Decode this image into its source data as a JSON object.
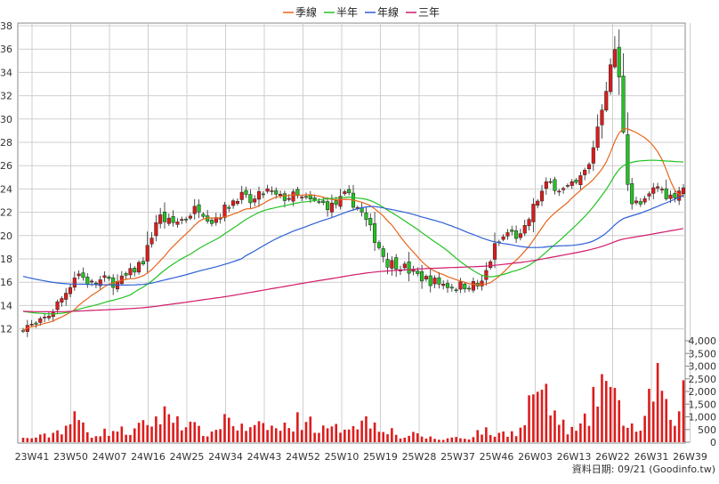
{
  "chart_data": {
    "type": "candlestick+line+bar",
    "legend": [
      {
        "name": "季線",
        "color": "#e8641b"
      },
      {
        "name": "半年",
        "color": "#22c322"
      },
      {
        "name": "年線",
        "color": "#2c5fd6"
      },
      {
        "name": "三年",
        "color": "#d11a6b"
      }
    ],
    "legend_position": "top-center",
    "price_axis": {
      "ticks": [
        12,
        14,
        16,
        18,
        20,
        22,
        24,
        26,
        28,
        30,
        32,
        34,
        36,
        38
      ],
      "range": [
        11.5,
        38.5
      ],
      "position": "left"
    },
    "volume_axis": {
      "ticks": [
        0,
        500,
        1000,
        1500,
        2000,
        2500,
        3000,
        3500,
        4000
      ],
      "tick_labels": [
        "0",
        "500",
        "1,000",
        "1,500",
        "2,000",
        "2,500",
        "3,000",
        "3,500",
        "4,000"
      ],
      "range": [
        0,
        4200
      ],
      "position": "right"
    },
    "x_ticks": [
      "23W41",
      "23W50",
      "24W07",
      "24W16",
      "24W25",
      "24W34",
      "24W43",
      "24W52",
      "25W10",
      "25W19",
      "25W28",
      "25W37",
      "25W46",
      "26W03",
      "26W13",
      "26W22",
      "26W31",
      "26W39"
    ],
    "grid": true,
    "colors": {
      "up": "#e01b1b",
      "down": "#22c322",
      "volume": "#dd1c1c",
      "grid": "#cfcfcf"
    },
    "footer": "資料日期: 09/21 (Goodinfo.tw)",
    "close_anchors": [
      12.3,
      12.2,
      13.3,
      14.8,
      16.9,
      15.8,
      16.2,
      15.9,
      16.8,
      18.0,
      21.7,
      21.0,
      21.5,
      22.5,
      21.3,
      22.3,
      23.5,
      22.8,
      23.9,
      23.2,
      23.4,
      23.0,
      22.8,
      22.5,
      23.5,
      22.2,
      20.0,
      17.7,
      17.5,
      16.7,
      16.2,
      15.9,
      15.6,
      15.8,
      15.7,
      19.0,
      20.3,
      19.8,
      22.8,
      24.6,
      23.9,
      24.3,
      26.0,
      31.3,
      36.5,
      22.9,
      22.6,
      24.3,
      23.3,
      24.2
    ],
    "vol_anchors": [
      150,
      200,
      300,
      600,
      1000,
      300,
      400,
      500,
      400,
      700,
      1000,
      1200,
      800,
      500,
      300,
      1100,
      600,
      500,
      700,
      500,
      800,
      1000,
      500,
      500,
      700,
      900,
      800,
      600,
      200,
      300,
      200,
      100,
      200,
      150,
      500,
      300,
      400,
      500,
      2400,
      1500,
      700,
      400,
      1000,
      2800,
      1500,
      700,
      400,
      3000,
      600,
      2000
    ]
  }
}
